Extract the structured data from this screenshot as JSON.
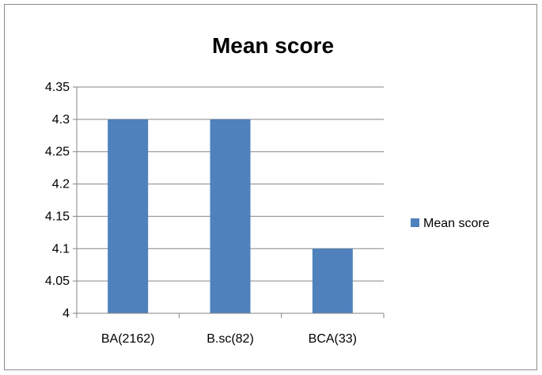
{
  "chart_data": {
    "type": "bar",
    "title": "Mean score",
    "categories": [
      "BA(2162)",
      "B.sc(82)",
      "BCA(33)"
    ],
    "series": [
      {
        "name": "Mean score",
        "values": [
          4.3,
          4.3,
          4.1
        ],
        "color": "#4f81bd"
      }
    ],
    "yticks": [
      "4",
      "4.05",
      "4.1",
      "4.15",
      "4.2",
      "4.25",
      "4.3",
      "4.35"
    ],
    "ylim": [
      4,
      4.35
    ],
    "xlabel": "",
    "ylabel": "",
    "grid": true,
    "legend": "right"
  }
}
